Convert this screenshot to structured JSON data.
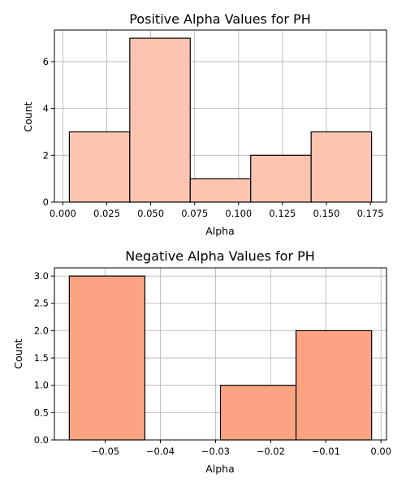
{
  "chart_data": [
    {
      "type": "bar",
      "title": "Positive Alpha Values for PH",
      "xlabel": "Alpha",
      "ylabel": "Count",
      "bin_edges": [
        0.0037,
        0.0381,
        0.0725,
        0.1069,
        0.1413,
        0.1757
      ],
      "values": [
        3,
        7,
        1,
        2,
        3
      ],
      "xlim": [
        -0.0048,
        0.1842
      ],
      "ylim": [
        0,
        7.35
      ],
      "xticks": [
        0.0,
        0.025,
        0.05,
        0.075,
        0.1,
        0.125,
        0.15,
        0.175
      ],
      "xtick_labels": [
        "0.000",
        "0.025",
        "0.050",
        "0.075",
        "0.100",
        "0.125",
        "0.150",
        "0.175"
      ],
      "yticks": [
        0,
        2,
        4,
        6
      ],
      "ytick_labels": [
        "0",
        "2",
        "4",
        "6"
      ],
      "grid": true,
      "color": "#fcc4b1",
      "edgecolor": "#000000"
    },
    {
      "type": "bar",
      "title": "Negative Alpha Values for PH",
      "xlabel": "Alpha",
      "ylabel": "Count",
      "bin_edges": [
        -0.0565,
        -0.0428,
        -0.0291,
        -0.0154,
        -0.0017
      ],
      "values": [
        3,
        0,
        1,
        2
      ],
      "xlim": [
        -0.0592,
        0.001
      ],
      "ylim": [
        0,
        3.15
      ],
      "xticks": [
        -0.05,
        -0.04,
        -0.03,
        -0.02,
        -0.01,
        0.0
      ],
      "xtick_labels": [
        "−0.05",
        "−0.04",
        "−0.03",
        "−0.02",
        "−0.01",
        "0.00"
      ],
      "yticks": [
        0,
        0.5,
        1.0,
        1.5,
        2.0,
        2.5,
        3.0
      ],
      "ytick_labels": [
        "0.0",
        "0.5",
        "1.0",
        "1.5",
        "2.0",
        "2.5",
        "3.0"
      ],
      "grid": true,
      "color": "#fca482",
      "edgecolor": "#000000"
    }
  ]
}
